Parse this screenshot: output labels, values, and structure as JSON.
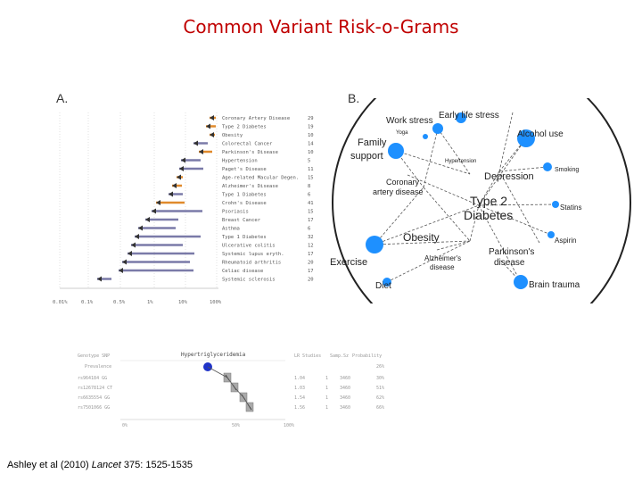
{
  "slide": {
    "title": "Common Variant Risk-o-Grams",
    "citation_pre": "Ashley et al (2010) ",
    "citation_journal": "Lancet",
    "citation_post": " 375: 1525-1535"
  },
  "panel_a": {
    "label": "A.",
    "diseases": [
      {
        "name": "Coronary Artery Disease",
        "n": "29",
        "color": "#e08a2c"
      },
      {
        "name": "Type 2 Diabetes",
        "n": "19",
        "color": "#e08a2c"
      },
      {
        "name": "Obesity",
        "n": "10",
        "color": "#e08a2c"
      },
      {
        "name": "Colorectal Cancer",
        "n": "14",
        "color": "#7a7aa8"
      },
      {
        "name": "Parkinson's Disease",
        "n": "10",
        "color": "#e08a2c"
      },
      {
        "name": "Hypertension",
        "n": "5",
        "color": "#7a7aa8"
      },
      {
        "name": "Paget's Disease",
        "n": "11",
        "color": "#7a7aa8"
      },
      {
        "name": "Age-related Macular Degen.",
        "n": "15",
        "color": "#e08a2c"
      },
      {
        "name": "Alzheimer's Disease",
        "n": "8",
        "color": "#e08a2c"
      },
      {
        "name": "Type 1 Diabetes",
        "n": "6",
        "color": "#7a7aa8"
      },
      {
        "name": "Crohn's Disease",
        "n": "41",
        "color": "#e08a2c"
      },
      {
        "name": "Psoriasis",
        "n": "15",
        "color": "#7a7aa8"
      },
      {
        "name": "Breast Cancer",
        "n": "17",
        "color": "#7a7aa8"
      },
      {
        "name": "Asthma",
        "n": "6",
        "color": "#7a7aa8"
      },
      {
        "name": "Type 1 Diabetes",
        "n": "32",
        "color": "#7a7aa8"
      },
      {
        "name": "Ulcerative colitis",
        "n": "12",
        "color": "#7a7aa8"
      },
      {
        "name": "Systemic lupus eryth.",
        "n": "17",
        "color": "#7a7aa8"
      },
      {
        "name": "Rheumatoid arthritis",
        "n": "20",
        "color": "#7a7aa8"
      },
      {
        "name": "Celiac disease",
        "n": "17",
        "color": "#7a7aa8"
      },
      {
        "name": "Systemic sclerosis",
        "n": "20",
        "color": "#7a7aa8"
      }
    ],
    "x_ticks": [
      "0.01%",
      "0.1%",
      "0.5%",
      "1%",
      "10%",
      "100%"
    ]
  },
  "panel_b": {
    "label": "B.",
    "nodes": [
      {
        "id": "work-stress",
        "label": "Work stress"
      },
      {
        "id": "early-life-stress",
        "label": "Early life stress"
      },
      {
        "id": "yoga",
        "label": "Yoga"
      },
      {
        "id": "family-support-1",
        "label": "Family"
      },
      {
        "id": "family-support-2",
        "label": "support"
      },
      {
        "id": "alcohol-use",
        "label": "Alcohol use"
      },
      {
        "id": "hypertension",
        "label": "Hypertension"
      },
      {
        "id": "depression",
        "label": "Depression"
      },
      {
        "id": "smoking",
        "label": "Smoking"
      },
      {
        "id": "coronary-1",
        "label": "Coronary"
      },
      {
        "id": "coronary-2",
        "label": "artery disease"
      },
      {
        "id": "type2-1",
        "label": "Type 2"
      },
      {
        "id": "type2-2",
        "label": "Diabetes"
      },
      {
        "id": "statins",
        "label": "Statins"
      },
      {
        "id": "obesity",
        "label": "Obesity"
      },
      {
        "id": "aspirin",
        "label": "Aspirin"
      },
      {
        "id": "parkinsons-1",
        "label": "Parkinson's"
      },
      {
        "id": "parkinsons-2",
        "label": "disease"
      },
      {
        "id": "exercise",
        "label": "Exercise"
      },
      {
        "id": "alzheimers-1",
        "label": "Alzheimer's"
      },
      {
        "id": "alzheimers-2",
        "label": "disease"
      },
      {
        "id": "diet",
        "label": "Diet"
      },
      {
        "id": "brain-trauma",
        "label": "Brain trauma"
      }
    ]
  },
  "panel_c": {
    "headers": {
      "genotype": "Genotype SNP",
      "trait": "Hypertriglyceridemia",
      "studies": "LR Studies",
      "sample": "Samp.Sz",
      "prob": "Probability"
    },
    "prevalence": {
      "label": "Prevalence",
      "prob": "26%"
    },
    "rows": [
      {
        "snp": "rs964184 GG",
        "lr": "1.04",
        "studies": "1",
        "sample": "3460",
        "prob": "30%"
      },
      {
        "snp": "rs12678124 CT",
        "lr": "1.03",
        "studies": "1",
        "sample": "3460",
        "prob": "51%"
      },
      {
        "snp": "rs6635554 GG",
        "lr": "1.54",
        "studies": "1",
        "sample": "3460",
        "prob": "62%"
      },
      {
        "snp": "rs7501066 GG",
        "lr": "1.56",
        "studies": "1",
        "sample": "3460",
        "prob": "66%"
      }
    ],
    "x_ticks": [
      "0%",
      "50%",
      "100%"
    ]
  }
}
